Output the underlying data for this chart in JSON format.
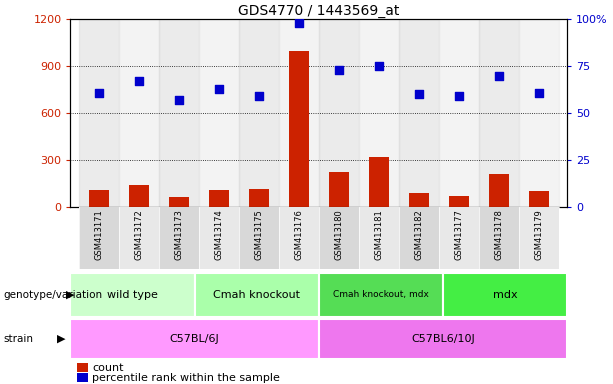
{
  "title": "GDS4770 / 1443569_at",
  "samples": [
    "GSM413171",
    "GSM413172",
    "GSM413173",
    "GSM413174",
    "GSM413175",
    "GSM413176",
    "GSM413180",
    "GSM413181",
    "GSM413182",
    "GSM413177",
    "GSM413178",
    "GSM413179"
  ],
  "counts": [
    110,
    140,
    65,
    110,
    115,
    1000,
    225,
    320,
    90,
    75,
    210,
    105
  ],
  "percentiles": [
    61,
    67,
    57,
    63,
    59,
    98,
    73,
    75,
    60,
    59,
    70,
    61
  ],
  "ylim_left": [
    0,
    1200
  ],
  "ylim_right": [
    0,
    100
  ],
  "left_ticks": [
    0,
    300,
    600,
    900,
    1200
  ],
  "right_ticks": [
    0,
    25,
    50,
    75,
    100
  ],
  "left_tick_labels": [
    "0",
    "300",
    "600",
    "900",
    "1200"
  ],
  "right_tick_labels": [
    "0",
    "25",
    "50",
    "75",
    "100%"
  ],
  "bar_color": "#cc2200",
  "dot_color": "#0000cc",
  "genotype_groups": [
    {
      "label": "wild type",
      "start": 0,
      "end": 3,
      "color": "#ccffcc"
    },
    {
      "label": "Cmah knockout",
      "start": 3,
      "end": 6,
      "color": "#aaffaa"
    },
    {
      "label": "Cmah knockout, mdx",
      "start": 6,
      "end": 9,
      "color": "#55dd55"
    },
    {
      "label": "mdx",
      "start": 9,
      "end": 12,
      "color": "#44ee44"
    }
  ],
  "strain_groups": [
    {
      "label": "C57BL/6J",
      "start": 0,
      "end": 6,
      "color": "#ff99ff"
    },
    {
      "label": "C57BL6/10J",
      "start": 6,
      "end": 12,
      "color": "#ee77ee"
    }
  ],
  "genotype_label": "genotype/variation",
  "strain_label": "strain",
  "legend_count": "count",
  "legend_pct": "percentile rank within the sample"
}
